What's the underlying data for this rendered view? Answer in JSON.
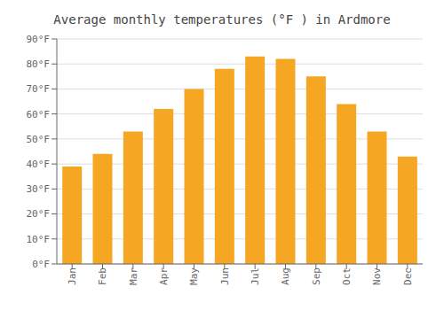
{
  "chart_data": {
    "type": "bar",
    "title": "Average monthly temperatures (°F ) in Ardmore",
    "categories": [
      "Jan",
      "Feb",
      "Mar",
      "Apr",
      "May",
      "Jun",
      "Jul",
      "Aug",
      "Sep",
      "Oct",
      "Nov",
      "Dec"
    ],
    "values": [
      39,
      44,
      53,
      62,
      70,
      78,
      83,
      82,
      75,
      64,
      53,
      43
    ],
    "color": "#F5A623",
    "ylim": [
      0,
      90
    ],
    "yticks": [
      {
        "value": 0,
        "label": "0°F"
      },
      {
        "value": 10,
        "label": "10°F"
      },
      {
        "value": 20,
        "label": "20°F"
      },
      {
        "value": 30,
        "label": "30°F"
      },
      {
        "value": 40,
        "label": "40°F"
      },
      {
        "value": 50,
        "label": "50°F"
      },
      {
        "value": 60,
        "label": "60°F"
      },
      {
        "value": 70,
        "label": "70°F"
      },
      {
        "value": 80,
        "label": "80°F"
      },
      {
        "value": 90,
        "label": "90°F"
      }
    ],
    "grid": true
  }
}
